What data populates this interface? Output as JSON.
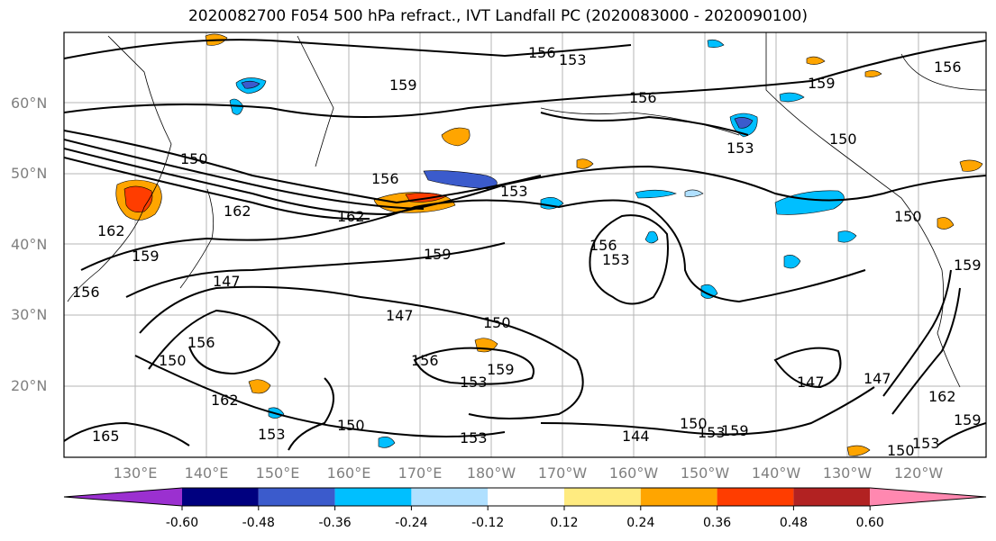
{
  "title": "2020082700 F054 500 hPa refract., IVT Landfall PC (2020083000 - 2020090100)",
  "chart_data": {
    "type": "heatmap",
    "title": "2020082700 F054 500 hPa refract., IVT Landfall PC (2020083000 - 2020090100)",
    "lat_ticks": [
      "20°N",
      "30°N",
      "40°N",
      "50°N",
      "60°N"
    ],
    "lon_ticks": [
      "130°E",
      "140°E",
      "150°E",
      "160°E",
      "170°E",
      "180°W",
      "170°W",
      "160°W",
      "150°W",
      "140°W",
      "130°W",
      "120°W"
    ],
    "grid": true,
    "contour_labels": [
      "156",
      "156",
      "156",
      "159",
      "159",
      "150",
      "150",
      "156",
      "153",
      "150",
      "162",
      "162",
      "153",
      "159",
      "156",
      "153",
      "147",
      "159",
      "147",
      "150",
      "156",
      "150",
      "162",
      "156",
      "153",
      "159",
      "153",
      "150",
      "153",
      "147",
      "147",
      "153",
      "150",
      "153",
      "159",
      "144",
      "150",
      "156",
      "162",
      "165",
      "159",
      "162",
      "159",
      "153"
    ],
    "colorbar": {
      "colors": [
        "#9b30d0",
        "#00007f",
        "#3b5bcc",
        "#00bfff",
        "#b0e0ff",
        "#ffffff",
        "#ffeb80",
        "#ffa500",
        "#ff3d00",
        "#b22222",
        "#ff88b0"
      ],
      "tick_labels": [
        "-0.60",
        "-0.48",
        "-0.36",
        "-0.24",
        "-0.12",
        "0.12",
        "0.24",
        "0.36",
        "0.48",
        "0.60"
      ],
      "tick_values": [
        -0.6,
        -0.48,
        -0.36,
        -0.24,
        -0.12,
        0.12,
        0.24,
        0.36,
        0.48,
        0.6
      ],
      "extend": "both"
    }
  }
}
